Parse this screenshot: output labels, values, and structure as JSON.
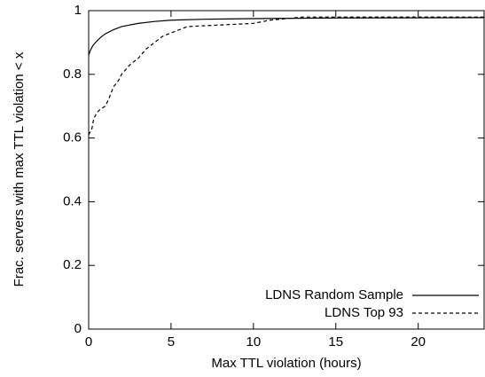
{
  "chart_data": {
    "type": "line",
    "x_label": "Max TTL violation (hours)",
    "y_label": "Frac. servers with max TTL violation < x",
    "xlim": [
      0,
      24
    ],
    "xticks": [
      0,
      5,
      10,
      15,
      20
    ],
    "ylim": [
      0,
      1
    ],
    "yticks": [
      0,
      0.2,
      0.4,
      0.6,
      0.8,
      1
    ],
    "legend": "bottom-right",
    "series": [
      {
        "name": "LDNS Random Sample",
        "color": "#000000",
        "dash": "solid",
        "x": [
          0,
          0.1,
          0.25,
          0.5,
          0.75,
          1,
          1.5,
          2,
          3,
          4,
          5,
          7,
          10,
          15,
          24
        ],
        "values": [
          0.86,
          0.875,
          0.89,
          0.905,
          0.917,
          0.927,
          0.94,
          0.95,
          0.96,
          0.966,
          0.97,
          0.973,
          0.975,
          0.977,
          0.978
        ]
      },
      {
        "name": "LDNS Top 93",
        "color": "#000000",
        "dash": "dashed",
        "x": [
          0,
          0.2,
          0.3,
          0.5,
          0.7,
          1,
          1.2,
          1.5,
          1.8,
          2,
          2.5,
          3,
          3.5,
          4,
          4.5,
          5,
          6,
          8,
          10,
          11,
          13,
          24
        ],
        "values": [
          0.61,
          0.63,
          0.66,
          0.68,
          0.69,
          0.7,
          0.72,
          0.76,
          0.78,
          0.8,
          0.83,
          0.85,
          0.88,
          0.9,
          0.92,
          0.93,
          0.95,
          0.955,
          0.96,
          0.97,
          0.98,
          0.98
        ]
      }
    ]
  }
}
